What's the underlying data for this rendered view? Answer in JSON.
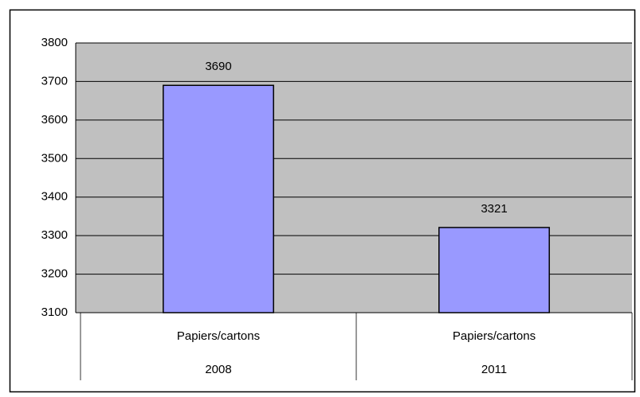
{
  "chart_data": {
    "type": "bar",
    "categories": [
      "Papiers/cartons",
      "Papiers/cartons"
    ],
    "category_groups": [
      "2008",
      "2011"
    ],
    "values": [
      3690,
      3321
    ],
    "color": "#9999ff",
    "ylim": [
      3100,
      3800
    ],
    "yticks": [
      3100,
      3200,
      3300,
      3400,
      3500,
      3600,
      3700,
      3800
    ],
    "grid": true
  }
}
